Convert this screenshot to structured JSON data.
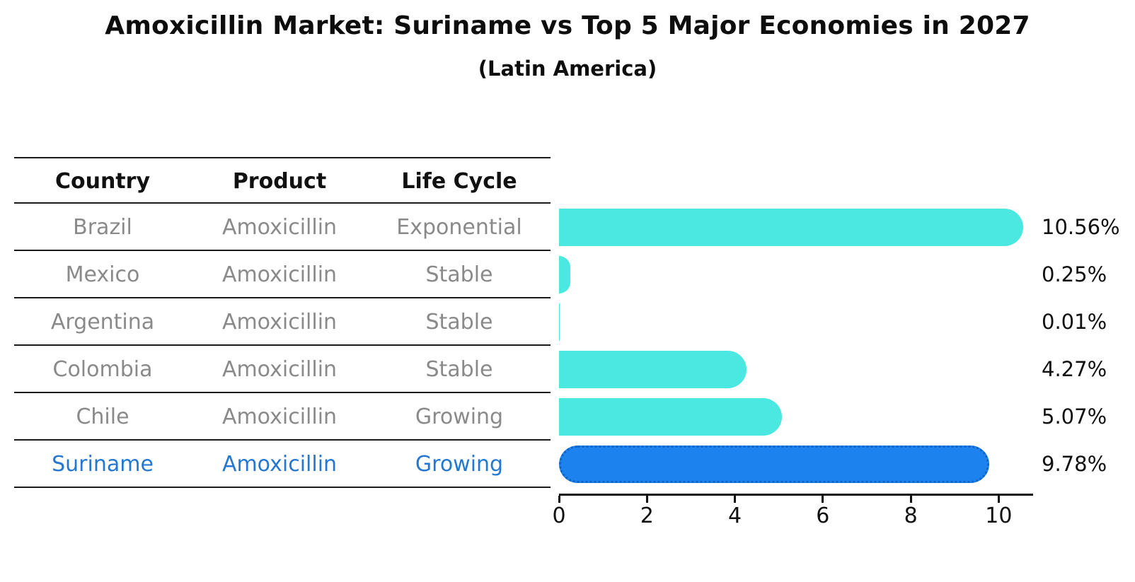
{
  "header": {
    "title": "Amoxicillin Market: Suriname vs Top 5 Major Economies in 2027",
    "subtitle": "(Latin America)"
  },
  "colors": {
    "bar_default": "#4ae8e0",
    "bar_highlight": "#1b82ee",
    "bar_highlight_edge": "#0c63c8",
    "table_text": "#8a8a8a",
    "highlight_text": "#2478d2",
    "axis": "#111111"
  },
  "table": {
    "headers": [
      "Country",
      "Product",
      "Life Cycle"
    ],
    "rows": [
      {
        "country": "Brazil",
        "product": "Amoxicillin",
        "life_cycle": "Exponential",
        "highlight": false
      },
      {
        "country": "Mexico",
        "product": "Amoxicillin",
        "life_cycle": "Stable",
        "highlight": false
      },
      {
        "country": "Argentina",
        "product": "Amoxicillin",
        "life_cycle": "Stable",
        "highlight": false
      },
      {
        "country": "Colombia",
        "product": "Amoxicillin",
        "life_cycle": "Stable",
        "highlight": false
      },
      {
        "country": "Chile",
        "product": "Amoxicillin",
        "life_cycle": "Growing",
        "highlight": false
      },
      {
        "country": "Suriname",
        "product": "Amoxicillin",
        "life_cycle": "Growing",
        "highlight": true
      }
    ]
  },
  "chart_data": {
    "type": "bar",
    "orientation": "horizontal",
    "title": "Amoxicillin Market: Suriname vs Top 5 Major Economies in 2027 (Latin America)",
    "categories": [
      "Brazil",
      "Mexico",
      "Argentina",
      "Colombia",
      "Chile",
      "Suriname"
    ],
    "values": [
      10.56,
      0.25,
      0.01,
      4.27,
      5.07,
      9.78
    ],
    "value_labels": [
      "10.56%",
      "0.25%",
      "0.01%",
      "4.27%",
      "5.07%",
      "9.78%"
    ],
    "highlight_index": 5,
    "xlabel": "",
    "ylabel": "",
    "xlim": [
      0,
      10.75
    ],
    "xticks": [
      0,
      2,
      4,
      6,
      8,
      10
    ],
    "grid": false,
    "legend": false
  }
}
